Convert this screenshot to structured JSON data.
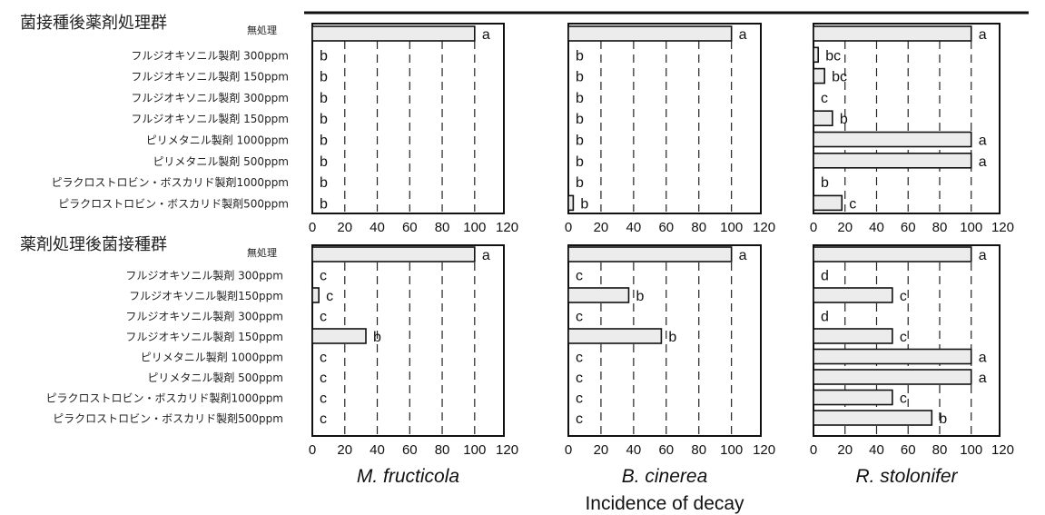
{
  "chart_data": {
    "type": "bar",
    "orientation": "horizontal",
    "xlabel": "Incidence of decay",
    "xlim": [
      0,
      120
    ],
    "xticks": [
      0,
      20,
      40,
      60,
      80,
      100,
      120
    ],
    "grid": "vertical dashed",
    "organisms": [
      "M. fructicola",
      "B. cinerea",
      "R. stolonifer"
    ],
    "groups": [
      {
        "title": "菌接種後薬剤処理群",
        "control_label": "無処理",
        "rows": [
          "フルジオキソニル製剤 300ppm",
          "フルジオキソニル製剤 150ppm",
          "フルジオキソニル製剤 300ppm",
          "フルジオキソニル製剤 150ppm",
          "ピリメタニル製剤 1000ppm",
          "ピリメタニル製剤 500ppm",
          "ピラクロストロビン・ボスカリド製剤1000ppm",
          "ピラクロストロビン・ボスカリド製剤500ppm"
        ],
        "panels": [
          {
            "organism": "M. fructicola",
            "values": [
              100,
              0,
              0,
              0,
              0,
              0,
              0,
              0,
              0
            ],
            "letters": [
              "a",
              "b",
              "b",
              "b",
              "b",
              "b",
              "b",
              "b",
              "b"
            ]
          },
          {
            "organism": "B. cinerea",
            "values": [
              100,
              0,
              0,
              0,
              0,
              0,
              0,
              0,
              3
            ],
            "letters": [
              "a",
              "b",
              "b",
              "b",
              "b",
              "b",
              "b",
              "b",
              "b"
            ]
          },
          {
            "organism": "R. stolonifer",
            "values": [
              100,
              3,
              7,
              0,
              12,
              100,
              100,
              0,
              18
            ],
            "letters": [
              "a",
              "bc",
              "bc",
              "c",
              "b",
              "a",
              "a",
              "b",
              "c"
            ]
          }
        ]
      },
      {
        "title": "薬剤処理後菌接種群",
        "control_label": "無処理",
        "rows": [
          "フルジオキソニル製剤 300ppm",
          "フルジオキソニル製剤150ppm",
          "フルジオキソニル製剤 300ppm",
          "フルジオキソニル製剤 150ppm",
          "ピリメタニル製剤 1000ppm",
          "ピリメタニル製剤 500ppm",
          "ピラクロストロビン・ボスカリド製剤1000ppm",
          "ピラクロストロビン・ボスカリド製剤500ppm"
        ],
        "panels": [
          {
            "organism": "M. fructicola",
            "values": [
              100,
              0,
              4,
              0,
              33,
              0,
              0,
              0,
              0
            ],
            "letters": [
              "a",
              "c",
              "c",
              "c",
              "b",
              "c",
              "c",
              "c",
              "c"
            ]
          },
          {
            "organism": "B. cinerea",
            "values": [
              100,
              0,
              37,
              0,
              57,
              0,
              0,
              0,
              0
            ],
            "letters": [
              "a",
              "c",
              "b",
              "c",
              "b",
              "c",
              "c",
              "c",
              "c"
            ]
          },
          {
            "organism": "R. stolonifer",
            "values": [
              100,
              0,
              50,
              0,
              50,
              100,
              100,
              50,
              75
            ],
            "letters": [
              "a",
              "d",
              "c",
              "d",
              "c",
              "a",
              "a",
              "c",
              "b"
            ]
          }
        ]
      }
    ]
  }
}
